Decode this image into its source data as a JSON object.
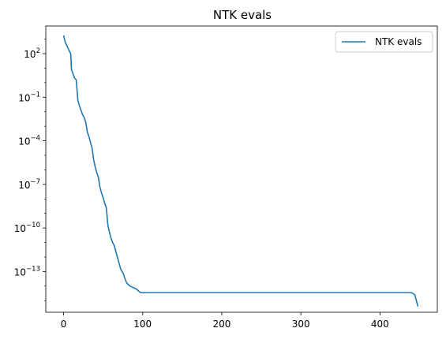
{
  "chart_data": {
    "type": "line",
    "title": "NTK evals",
    "xlabel": "",
    "ylabel": "",
    "xlim": [
      -22.5,
      472.5
    ],
    "ylim_log10": [
      -15.8,
      3.9
    ],
    "yscale": "log",
    "grid": false,
    "legend_position": "top-right",
    "x_ticks": [
      {
        "value": 0,
        "label": "0"
      },
      {
        "value": 100,
        "label": "100"
      },
      {
        "value": 200,
        "label": "200"
      },
      {
        "value": 300,
        "label": "300"
      },
      {
        "value": 400,
        "label": "400"
      }
    ],
    "y_ticks": [
      {
        "log10": 2,
        "base": "10",
        "exp": "2"
      },
      {
        "log10": -1,
        "base": "10",
        "exp": "−1"
      },
      {
        "log10": -4,
        "base": "10",
        "exp": "−4"
      },
      {
        "log10": -7,
        "base": "10",
        "exp": "−7"
      },
      {
        "log10": -10,
        "base": "10",
        "exp": "−10"
      },
      {
        "log10": -13,
        "base": "10",
        "exp": "−13"
      }
    ],
    "series": [
      {
        "name": "NTK evals",
        "color": "#1f77b4",
        "points_log10": [
          [
            0,
            3.25
          ],
          [
            2,
            2.8
          ],
          [
            5,
            2.45
          ],
          [
            8,
            2.1
          ],
          [
            9,
            2.0
          ],
          [
            10,
            0.9
          ],
          [
            12,
            0.6
          ],
          [
            14,
            0.3
          ],
          [
            16,
            0.2
          ],
          [
            17,
            -0.5
          ],
          [
            18,
            -1.2
          ],
          [
            20,
            -1.6
          ],
          [
            22,
            -1.9
          ],
          [
            24,
            -2.2
          ],
          [
            26,
            -2.4
          ],
          [
            28,
            -2.7
          ],
          [
            30,
            -3.4
          ],
          [
            32,
            -3.7
          ],
          [
            34,
            -4.1
          ],
          [
            36,
            -4.5
          ],
          [
            38,
            -5.3
          ],
          [
            40,
            -5.8
          ],
          [
            42,
            -6.2
          ],
          [
            44,
            -6.5
          ],
          [
            46,
            -7.2
          ],
          [
            48,
            -7.6
          ],
          [
            50,
            -7.9
          ],
          [
            52,
            -8.3
          ],
          [
            54,
            -8.6
          ],
          [
            56,
            -9.8
          ],
          [
            58,
            -10.3
          ],
          [
            60,
            -10.7
          ],
          [
            62,
            -11.0
          ],
          [
            64,
            -11.2
          ],
          [
            66,
            -11.6
          ],
          [
            68,
            -12.0
          ],
          [
            70,
            -12.4
          ],
          [
            72,
            -12.8
          ],
          [
            74,
            -13.0
          ],
          [
            76,
            -13.2
          ],
          [
            77,
            -13.4
          ],
          [
            78,
            -13.55
          ],
          [
            80,
            -13.8
          ],
          [
            82,
            -13.9
          ],
          [
            84,
            -14.0
          ],
          [
            88,
            -14.1
          ],
          [
            92,
            -14.2
          ],
          [
            94,
            -14.3
          ],
          [
            96,
            -14.4
          ],
          [
            98,
            -14.45
          ],
          [
            100,
            -14.45
          ],
          [
            440,
            -14.45
          ],
          [
            444,
            -14.6
          ],
          [
            446,
            -15.0
          ],
          [
            448,
            -15.4
          ]
        ]
      }
    ]
  }
}
